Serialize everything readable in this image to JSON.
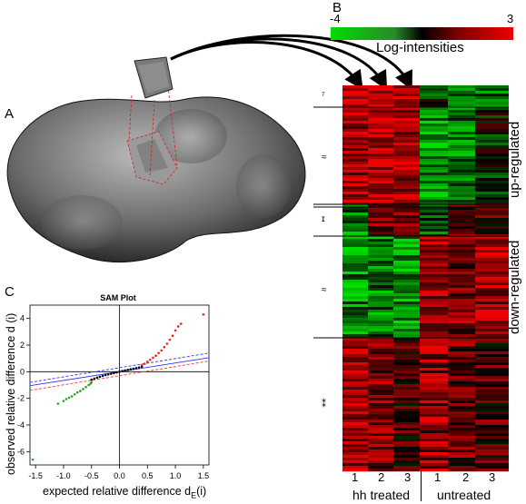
{
  "panels": {
    "a": "A",
    "b": "B",
    "c": "C"
  },
  "heatmap": {
    "scale_min": "-4",
    "scale_max": "3",
    "scale_title": "Log-intensities",
    "col_ticks": [
      "1",
      "2",
      "3",
      "1",
      "2",
      "3"
    ],
    "group_left": "hh treated",
    "group_right": "untreated",
    "side_top": "up-regulated",
    "side_bottom": "down-regulated",
    "cluster_marks": [
      "⁷",
      "≈",
      "ɪ",
      "≈",
      "⁑"
    ],
    "colors": {
      "low": "#00dd00",
      "mid": "#000000",
      "high": "#ee0000"
    }
  },
  "chart_data": {
    "type": "scatter",
    "title": "SAM Plot",
    "xlabel": "expected relative difference d",
    "xlabel_sub": "E",
    "xlabel_tail": "(i)",
    "ylabel": "observed relative difference d (i)",
    "xlim": [
      -1.6,
      1.6
    ],
    "ylim": [
      -7,
      5
    ],
    "xticks": [
      "-1.5",
      "-1.0",
      "-0.5",
      "0.0",
      "0.5",
      "1.0",
      "1.5"
    ],
    "yticks": [
      "4",
      "2",
      "0",
      "-2",
      "-4",
      "-6"
    ],
    "xtick_values": [
      -1.5,
      -1.0,
      -0.5,
      0.0,
      0.5,
      1.0,
      1.5
    ],
    "ytick_values": [
      4,
      2,
      0,
      -2,
      -4,
      -6
    ],
    "series": [
      {
        "color": "#000000",
        "points": [
          [
            -0.5,
            -0.6
          ],
          [
            -0.45,
            -0.52
          ],
          [
            -0.4,
            -0.45
          ],
          [
            -0.35,
            -0.38
          ],
          [
            -0.3,
            -0.31
          ],
          [
            -0.25,
            -0.25
          ],
          [
            -0.2,
            -0.2
          ],
          [
            -0.15,
            -0.15
          ],
          [
            -0.1,
            -0.1
          ],
          [
            -0.05,
            -0.05
          ],
          [
            0,
            0
          ],
          [
            0.05,
            0.05
          ],
          [
            0.1,
            0.1
          ],
          [
            0.15,
            0.14
          ],
          [
            0.2,
            0.18
          ],
          [
            0.25,
            0.22
          ],
          [
            0.3,
            0.27
          ],
          [
            0.35,
            0.32
          ],
          [
            0.4,
            0.38
          ]
        ]
      },
      {
        "color": "#22aa22",
        "points": [
          [
            -1.1,
            -2.4
          ],
          [
            -1.0,
            -2.2
          ],
          [
            -0.95,
            -2.05
          ],
          [
            -0.9,
            -1.95
          ],
          [
            -0.85,
            -1.85
          ],
          [
            -0.8,
            -1.7
          ],
          [
            -0.75,
            -1.55
          ],
          [
            -0.7,
            -1.45
          ],
          [
            -0.65,
            -1.3
          ],
          [
            -0.6,
            -1.15
          ],
          [
            -0.55,
            -1.0
          ],
          [
            -0.52,
            -0.9
          ],
          [
            -0.5,
            -0.8
          ],
          [
            -1.55,
            -6.6
          ]
        ]
      },
      {
        "color": "#ee2222",
        "points": [
          [
            0.4,
            0.5
          ],
          [
            0.45,
            0.6
          ],
          [
            0.5,
            0.75
          ],
          [
            0.55,
            0.9
          ],
          [
            0.6,
            1.05
          ],
          [
            0.65,
            1.2
          ],
          [
            0.7,
            1.4
          ],
          [
            0.75,
            1.6
          ],
          [
            0.8,
            1.85
          ],
          [
            0.85,
            2.1
          ],
          [
            0.9,
            2.4
          ],
          [
            0.95,
            2.7
          ],
          [
            1.0,
            3.1
          ],
          [
            1.05,
            3.4
          ],
          [
            1.1,
            3.6
          ],
          [
            1.5,
            4.3
          ]
        ]
      }
    ],
    "lines": [
      {
        "color": "#3333ff",
        "style": "solid",
        "x": [
          -1.6,
          1.6
        ],
        "y": [
          -1.05,
          1.05
        ]
      },
      {
        "color": "#ff3333",
        "style": "dashed",
        "x": [
          -1.6,
          1.6
        ],
        "y": [
          -1.4,
          0.8
        ]
      },
      {
        "color": "#3333ff",
        "style": "dashed",
        "x": [
          -1.6,
          1.6
        ],
        "y": [
          -0.8,
          1.4
        ]
      }
    ]
  }
}
